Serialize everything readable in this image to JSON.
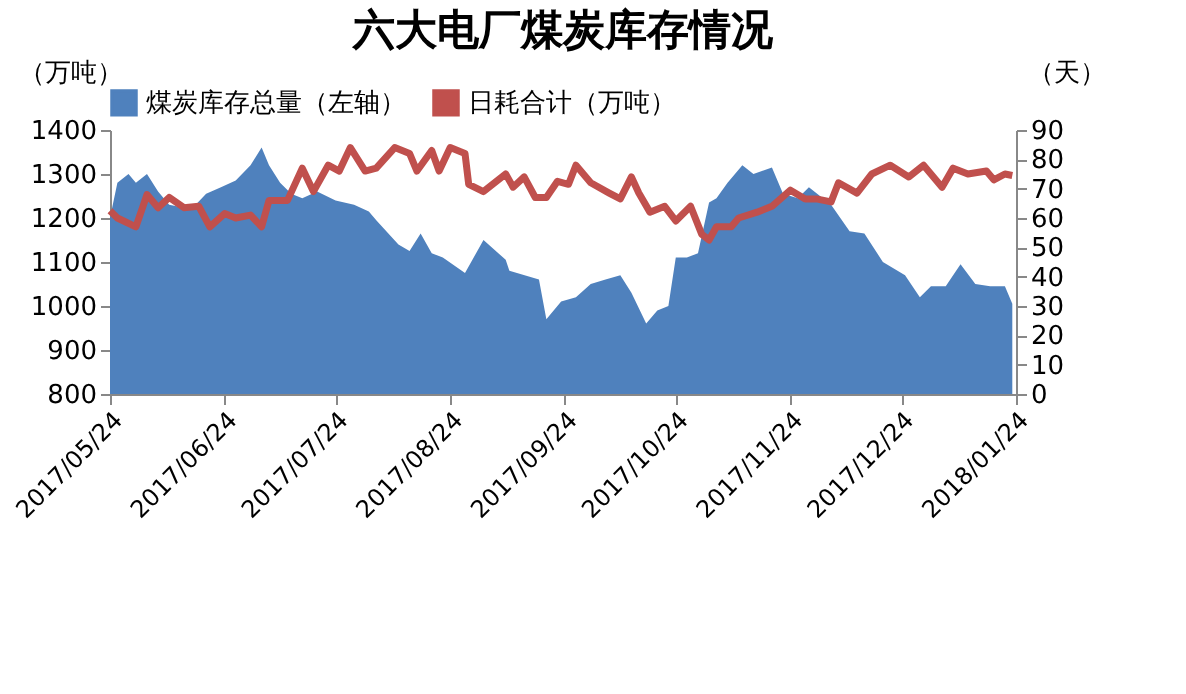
{
  "chart_data": {
    "type": "area",
    "title": "六大电厂煤炭库存情况",
    "ylabel": "（万吨）",
    "y2label": "（天）",
    "xlim": [
      "2017-05-24",
      "2018-01-24"
    ],
    "xticks": [
      {
        "value": "2017-05-24",
        "label": "2017/05/24"
      },
      {
        "value": "2017-06-24",
        "label": "2017/06/24"
      },
      {
        "value": "2017-07-24",
        "label": "2017/07/24"
      },
      {
        "value": "2017-08-24",
        "label": "2017/08/24"
      },
      {
        "value": "2017-09-24",
        "label": "2017/09/24"
      },
      {
        "value": "2017-10-24",
        "label": "2017/10/24"
      },
      {
        "value": "2017-11-24",
        "label": "2017/11/24"
      },
      {
        "value": "2017-12-24",
        "label": "2017/12/24"
      },
      {
        "value": "2018-01-24",
        "label": "2018/01/24"
      }
    ],
    "ylim": [
      800,
      1400
    ],
    "yticks": [
      800,
      900,
      1000,
      1100,
      1200,
      1300,
      1400
    ],
    "y2lim": [
      0,
      90
    ],
    "y2ticks": [
      0,
      10,
      20,
      30,
      40,
      50,
      60,
      70,
      80,
      90
    ],
    "grid": false,
    "legend": "top",
    "series": [
      {
        "name": "煤炭库存总量（左轴）",
        "color": "#4f81bd",
        "x": [
          "2017-05-24",
          "2017-05-26",
          "2017-05-29",
          "2017-05-31",
          "2017-06-03",
          "2017-06-06",
          "2017-06-09",
          "2017-06-15",
          "2017-06-19",
          "2017-06-23",
          "2017-06-27",
          "2017-07-01",
          "2017-07-04",
          "2017-07-06",
          "2017-07-09",
          "2017-07-12",
          "2017-07-15",
          "2017-07-19",
          "2017-07-24",
          "2017-07-29",
          "2017-08-02",
          "2017-08-04",
          "2017-08-10",
          "2017-08-13",
          "2017-08-16",
          "2017-08-19",
          "2017-08-22",
          "2017-08-28",
          "2017-09-02",
          "2017-09-08",
          "2017-09-09",
          "2017-09-17",
          "2017-09-19",
          "2017-09-23",
          "2017-09-27",
          "2017-10-01",
          "2017-10-05",
          "2017-10-09",
          "2017-10-12",
          "2017-10-16",
          "2017-10-19",
          "2017-10-22",
          "2017-10-24",
          "2017-10-27",
          "2017-10-30",
          "2017-11-02",
          "2017-11-04",
          "2017-11-07",
          "2017-11-11",
          "2017-11-14",
          "2017-11-19",
          "2017-11-22",
          "2017-11-26",
          "2017-11-29",
          "2017-12-05",
          "2017-12-10",
          "2017-12-14",
          "2017-12-19",
          "2017-12-25",
          "2017-12-29",
          "2018-01-01",
          "2018-01-05",
          "2018-01-09",
          "2018-01-13",
          "2018-01-17",
          "2018-01-21",
          "2018-01-23"
        ],
        "values": [
          1200,
          1280,
          1300,
          1280,
          1300,
          1260,
          1230,
          1220,
          1255,
          1270,
          1285,
          1320,
          1360,
          1320,
          1280,
          1255,
          1245,
          1260,
          1240,
          1230,
          1215,
          1195,
          1140,
          1125,
          1165,
          1120,
          1110,
          1075,
          1150,
          1105,
          1080,
          1060,
          970,
          1010,
          1020,
          1050,
          1060,
          1070,
          1030,
          960,
          990,
          1000,
          1110,
          1110,
          1120,
          1235,
          1245,
          1280,
          1320,
          1300,
          1315,
          1255,
          1245,
          1270,
          1230,
          1170,
          1165,
          1100,
          1070,
          1020,
          1045,
          1045,
          1095,
          1050,
          1045,
          1045,
          1005
        ]
      },
      {
        "name": "日耗合计（万吨）",
        "type": "line",
        "axis": "y2",
        "color": "#c0504d",
        "x": [
          "2017-05-24",
          "2017-05-26",
          "2017-05-31",
          "2017-06-03",
          "2017-06-06",
          "2017-06-09",
          "2017-06-13",
          "2017-06-17",
          "2017-06-20",
          "2017-06-24",
          "2017-06-27",
          "2017-07-01",
          "2017-07-04",
          "2017-07-06",
          "2017-07-11",
          "2017-07-15",
          "2017-07-18",
          "2017-07-22",
          "2017-07-25",
          "2017-07-28",
          "2017-08-01",
          "2017-08-04",
          "2017-08-09",
          "2017-08-13",
          "2017-08-15",
          "2017-08-19",
          "2017-08-21",
          "2017-08-24",
          "2017-08-28",
          "2017-08-29",
          "2017-09-02",
          "2017-09-08",
          "2017-09-10",
          "2017-09-13",
          "2017-09-16",
          "2017-09-19",
          "2017-09-22",
          "2017-09-25",
          "2017-09-27",
          "2017-10-01",
          "2017-10-06",
          "2017-10-09",
          "2017-10-12",
          "2017-10-14",
          "2017-10-17",
          "2017-10-21",
          "2017-10-24",
          "2017-10-28",
          "2017-10-31",
          "2017-11-02",
          "2017-11-04",
          "2017-11-08",
          "2017-11-10",
          "2017-11-15",
          "2017-11-19",
          "2017-11-24",
          "2017-11-28",
          "2017-12-01",
          "2017-12-05",
          "2017-12-07",
          "2017-12-12",
          "2017-12-16",
          "2017-12-21",
          "2017-12-26",
          "2017-12-30",
          "2018-01-04",
          "2018-01-07",
          "2018-01-11",
          "2018-01-16",
          "2018-01-18",
          "2018-01-21",
          "2018-01-23"
        ],
        "values": [
          62.5,
          60,
          57,
          68,
          63.5,
          67,
          63.5,
          64,
          57,
          61.5,
          60,
          61,
          57,
          66,
          66,
          77,
          69,
          78,
          76,
          84,
          76,
          77,
          84,
          82,
          76,
          83,
          76,
          84,
          82,
          71.5,
          69,
          75,
          70.5,
          74,
          67,
          67,
          72.5,
          71.5,
          78,
          72,
          68.5,
          66.5,
          74,
          68.5,
          62,
          64,
          59,
          64,
          54.5,
          52.5,
          57,
          57,
          60,
          62,
          64,
          69.5,
          66.5,
          66.5,
          65.5,
          72,
          68.5,
          75,
          78,
          74,
          78,
          70.5,
          77,
          75,
          76,
          73,
          75,
          74.5
        ]
      }
    ]
  }
}
